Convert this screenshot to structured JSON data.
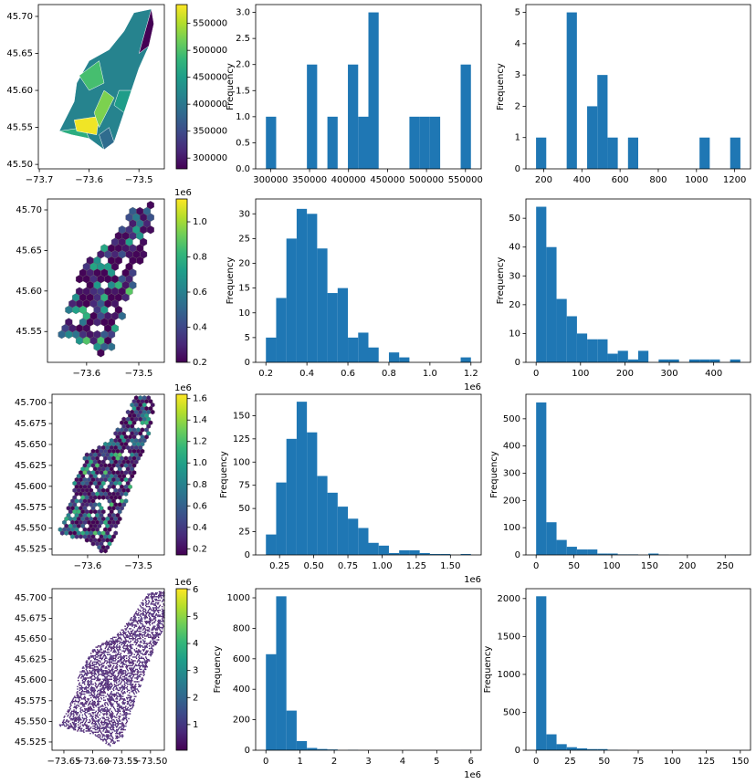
{
  "chart_data": [
    {
      "type": "map",
      "xlim": [
        -73.702,
        -73.449
      ],
      "ylim": [
        45.494,
        45.716
      ],
      "xticks": [
        {
          "value": -73.7,
          "label": "−73.7"
        },
        {
          "value": -73.6,
          "label": "−73.6"
        },
        {
          "value": -73.5,
          "label": "−73.5"
        }
      ],
      "yticks": [
        {
          "value": 45.5,
          "label": "45.50"
        },
        45.55,
        {
          "value": 45.6,
          "label": "45.60"
        },
        45.65,
        {
          "value": 45.7,
          "label": "45.70"
        }
      ],
      "colorbar": {
        "lim": [
          280000,
          585000
        ],
        "ticks": [
          300000,
          350000,
          400000,
          450000,
          500000,
          550000
        ]
      }
    },
    {
      "type": "histogram",
      "color": "#1f77b4",
      "ylabel": "Frequency",
      "bins": [
        294000,
        307150,
        320300,
        333450,
        346600,
        359750,
        372900,
        386050,
        399200,
        412350,
        425500,
        438650,
        451800,
        464950,
        478100,
        491250,
        504400,
        517550,
        530700,
        543850,
        557000
      ],
      "counts": [
        1,
        0,
        0,
        0,
        2,
        0,
        1,
        0,
        2,
        1,
        3,
        0,
        0,
        0,
        1,
        1,
        1,
        0,
        0,
        2
      ],
      "xlim": [
        280850,
        570150
      ],
      "ylim": [
        0,
        3.15
      ],
      "xticks": [
        300000,
        350000,
        400000,
        450000,
        500000,
        550000
      ],
      "yticks": [
        {
          "value": 0,
          "label": "0.0"
        },
        0.5,
        {
          "value": 1,
          "label": "1.0"
        },
        1.5,
        {
          "value": 2,
          "label": "2.0"
        },
        2.5,
        {
          "value": 3,
          "label": "3.0"
        }
      ]
    },
    {
      "type": "histogram",
      "color": "#1f77b4",
      "ylabel": "Frequency",
      "bins": [
        160,
        213.5,
        267,
        320.5,
        374,
        427.5,
        481,
        534.5,
        588,
        641.5,
        695,
        748.5,
        802,
        855.5,
        909,
        962.5,
        1016,
        1069.5,
        1123,
        1176.5,
        1230
      ],
      "counts": [
        1,
        0,
        0,
        5,
        0,
        2,
        3,
        1,
        0,
        1,
        0,
        0,
        0,
        0,
        0,
        0,
        1,
        0,
        0,
        1
      ],
      "xlim": [
        107,
        1283
      ],
      "ylim": [
        0,
        5.25
      ],
      "xticks": [
        200,
        400,
        600,
        800,
        1000,
        1200
      ],
      "yticks": [
        0,
        1,
        2,
        3,
        4,
        5
      ]
    },
    {
      "type": "map",
      "xlim": [
        -73.675,
        -73.451
      ],
      "ylim": [
        45.512,
        45.7135
      ],
      "xticks": [
        {
          "value": -73.6,
          "label": "−73.6"
        },
        {
          "value": -73.5,
          "label": "−73.5"
        }
      ],
      "yticks": [
        45.55,
        {
          "value": 45.6,
          "label": "45.60"
        },
        45.65,
        {
          "value": 45.7,
          "label": "45.70"
        }
      ],
      "colorbar": {
        "lim": [
          0.2,
          1.13
        ],
        "ticks": [
          0.2,
          0.4,
          0.6,
          0.8,
          {
            "value": 1,
            "label": "1.0"
          }
        ],
        "offset": "1e6"
      }
    },
    {
      "type": "histogram",
      "color": "#1f77b4",
      "ylabel": "Frequency",
      "x_offset": "1e6",
      "bins": [
        0.2,
        0.25,
        0.3,
        0.35,
        0.4,
        0.45,
        0.5,
        0.55,
        0.6,
        0.65,
        0.7,
        0.75,
        0.8,
        0.85,
        0.9,
        0.95,
        1.0,
        1.05,
        1.1,
        1.15,
        1.2
      ],
      "counts": [
        5,
        13,
        25,
        31,
        30,
        23,
        14,
        15,
        5,
        6,
        3,
        0,
        2,
        1,
        0,
        0,
        0,
        0,
        0,
        1
      ],
      "xlim": [
        0.15,
        1.25
      ],
      "ylim": [
        0,
        33
      ],
      "xticks": [
        0.2,
        0.4,
        0.6,
        0.8,
        {
          "value": 1,
          "label": "1.0"
        },
        1.2
      ],
      "yticks": [
        0,
        5,
        10,
        15,
        20,
        25,
        30
      ]
    },
    {
      "type": "histogram",
      "color": "#1f77b4",
      "ylabel": "Frequency",
      "bins": [
        0,
        23,
        46,
        69,
        92,
        115,
        138,
        161,
        184,
        207,
        230,
        253,
        276,
        299,
        322,
        345,
        368,
        391,
        414,
        437,
        460
      ],
      "counts": [
        54,
        40,
        22,
        16,
        10,
        8,
        8,
        3,
        4,
        1,
        4,
        0,
        1,
        1,
        0,
        1,
        1,
        1,
        0,
        1
      ],
      "xlim": [
        -23,
        483
      ],
      "ylim": [
        0,
        56.7
      ],
      "xticks": [
        0,
        100,
        200,
        300,
        400
      ],
      "yticks": [
        0,
        10,
        20,
        30,
        40,
        50
      ]
    },
    {
      "type": "map",
      "xlim": [
        -73.67,
        -73.449
      ],
      "ylim": [
        45.518,
        45.71
      ],
      "xticks": [
        {
          "value": -73.6,
          "label": "−73.6"
        },
        {
          "value": -73.5,
          "label": "−73.5"
        }
      ],
      "yticks": [
        45.525,
        {
          "value": 45.55,
          "label": "45.550"
        },
        45.575,
        {
          "value": 45.6,
          "label": "45.600"
        },
        45.625,
        {
          "value": 45.65,
          "label": "45.650"
        },
        45.675,
        {
          "value": 45.7,
          "label": "45.700"
        }
      ],
      "colorbar": {
        "lim": [
          0.143,
          1.64
        ],
        "ticks": [
          0.2,
          0.4,
          0.6,
          0.8,
          {
            "value": 1,
            "label": "1.0"
          },
          1.2,
          1.4,
          1.6
        ],
        "offset": "1e6"
      }
    },
    {
      "type": "histogram",
      "color": "#1f77b4",
      "ylabel": "Frequency",
      "x_offset": "1e6",
      "bins": [
        0.15,
        0.225,
        0.3,
        0.375,
        0.45,
        0.525,
        0.6,
        0.675,
        0.75,
        0.825,
        0.9,
        0.975,
        1.05,
        1.125,
        1.2,
        1.275,
        1.35,
        1.425,
        1.5,
        1.575,
        1.65
      ],
      "counts": [
        22,
        78,
        125,
        165,
        132,
        85,
        67,
        52,
        39,
        29,
        13,
        10,
        2,
        5,
        5,
        2,
        1,
        1,
        0,
        1
      ],
      "xlim": [
        0.075,
        1.725
      ],
      "ylim": [
        0,
        173
      ],
      "xticks": [
        0.25,
        {
          "value": 0.5,
          "label": "0.50"
        },
        0.75,
        {
          "value": 1,
          "label": "1.00"
        },
        1.25,
        {
          "value": 1.5,
          "label": "1.50"
        }
      ],
      "yticks": [
        0,
        25,
        50,
        75,
        100,
        125,
        150
      ]
    },
    {
      "type": "histogram",
      "color": "#1f77b4",
      "ylabel": "Frequency",
      "bins": [
        0,
        13.5,
        27,
        40.5,
        54,
        67.5,
        81,
        94.5,
        108,
        121.5,
        135,
        148.5,
        162,
        175.5,
        189,
        202.5,
        216,
        229.5,
        243,
        256.5,
        270
      ],
      "counts": [
        560,
        120,
        55,
        30,
        20,
        20,
        5,
        5,
        2,
        2,
        0,
        5,
        1,
        0,
        0,
        0,
        0,
        0,
        0,
        1
      ],
      "xlim": [
        -13.5,
        283.5
      ],
      "ylim": [
        0,
        590
      ],
      "xticks": [
        0,
        50,
        100,
        150,
        200,
        250
      ],
      "yticks": [
        0,
        100,
        200,
        300,
        400,
        500
      ]
    },
    {
      "type": "map",
      "xlim": [
        -73.6705,
        -73.476
      ],
      "ylim": [
        45.515,
        45.711
      ],
      "xticks": [
        {
          "value": -73.65,
          "label": "−73.65"
        },
        {
          "value": -73.6,
          "label": "−73.60"
        },
        {
          "value": -73.55,
          "label": "−73.55"
        },
        {
          "value": -73.5,
          "label": "−73.50"
        }
      ],
      "yticks": [
        45.525,
        {
          "value": 45.55,
          "label": "45.550"
        },
        45.575,
        {
          "value": 45.6,
          "label": "45.600"
        },
        45.625,
        {
          "value": 45.65,
          "label": "45.650"
        },
        45.675,
        {
          "value": 45.7,
          "label": "45.700"
        }
      ],
      "colorbar": {
        "lim": [
          0.05,
          6.03
        ],
        "ticks": [
          1,
          2,
          3,
          4,
          5,
          6
        ],
        "offset": "1e6"
      }
    },
    {
      "type": "histogram",
      "color": "#1f77b4",
      "ylabel": "Frequency",
      "x_offset": "1e6",
      "bins": [
        0,
        0.3,
        0.6,
        0.9,
        1.2,
        1.5,
        1.8,
        2.1,
        2.4,
        2.7,
        3.0,
        3.3,
        3.6,
        3.9,
        4.2,
        4.5,
        4.8,
        5.1,
        5.4,
        5.7,
        6.0
      ],
      "counts": [
        630,
        1010,
        260,
        60,
        15,
        8,
        5,
        0,
        2,
        0,
        0,
        0,
        0,
        0,
        0,
        0,
        0,
        0,
        0,
        1
      ],
      "xlim": [
        -0.3,
        6.3
      ],
      "ylim": [
        0,
        1060
      ],
      "xticks": [
        0,
        1,
        2,
        3,
        4,
        5,
        6
      ],
      "yticks": [
        0,
        200,
        400,
        600,
        800,
        1000
      ]
    },
    {
      "type": "histogram",
      "color": "#1f77b4",
      "ylabel": "Frequency",
      "bins": [
        0,
        7.5,
        15,
        22.5,
        30,
        37.5,
        45,
        52.5,
        60,
        67.5,
        75,
        82.5,
        90,
        97.5,
        105,
        112.5,
        120,
        127.5,
        135,
        142.5,
        150
      ],
      "counts": [
        2030,
        210,
        80,
        40,
        25,
        15,
        15,
        5,
        2,
        0,
        0,
        0,
        0,
        0,
        0,
        0,
        0,
        0,
        0,
        1
      ],
      "xlim": [
        -7.5,
        157.5
      ],
      "ylim": [
        0,
        2130
      ],
      "xticks": [
        0,
        25,
        50,
        75,
        100,
        125,
        150
      ],
      "yticks": [
        0,
        500,
        1000,
        1500,
        2000
      ]
    }
  ]
}
